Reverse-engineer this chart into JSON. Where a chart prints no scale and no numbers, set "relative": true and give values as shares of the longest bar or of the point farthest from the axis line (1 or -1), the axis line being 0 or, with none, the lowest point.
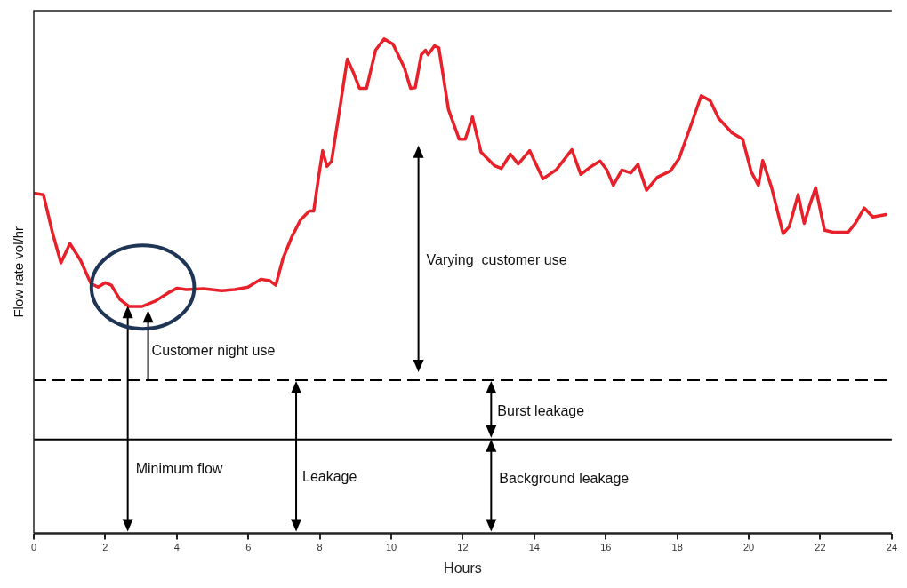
{
  "chart_data": {
    "type": "line",
    "xlabel": "Hours",
    "ylabel": "Flow rate vol/hr",
    "relative": true,
    "xlim": [
      0,
      24
    ],
    "xticks": [
      0,
      2,
      4,
      6,
      8,
      10,
      12,
      14,
      16,
      18,
      20,
      22,
      24
    ],
    "grid": false,
    "legend": false,
    "marker": "none",
    "line_style": "solid",
    "series": [
      {
        "color": "#e8202a",
        "x": [
          0,
          0.27,
          0.52,
          0.76,
          1.01,
          1.31,
          1.6,
          1.8,
          2.0,
          2.17,
          2.41,
          2.66,
          3.03,
          3.4,
          3.77,
          4.01,
          4.26,
          4.75,
          5.25,
          5.62,
          5.99,
          6.35,
          6.6,
          6.77,
          6.97,
          7.22,
          7.46,
          7.71,
          7.83,
          7.96,
          8.08,
          8.2,
          8.33,
          8.57,
          8.77,
          8.94,
          9.11,
          9.31,
          9.56,
          9.8,
          10.05,
          10.37,
          10.54,
          10.67,
          10.84,
          10.96,
          11.03,
          11.21,
          11.33,
          11.6,
          11.9,
          12.07,
          12.27,
          12.51,
          12.88,
          13.08,
          13.33,
          13.55,
          13.87,
          14.24,
          14.61,
          15.05,
          15.3,
          15.59,
          15.84,
          16.03,
          16.21,
          16.45,
          16.7,
          16.9,
          17.14,
          17.44,
          17.81,
          18.05,
          18.42,
          18.67,
          18.92,
          19.16,
          19.53,
          19.83,
          20.07,
          20.27,
          20.39,
          20.64,
          20.96,
          21.13,
          21.38,
          21.55,
          21.7,
          21.87,
          22.12,
          22.36,
          22.78,
          22.98,
          23.23,
          23.47,
          23.84
        ],
        "values": [
          0.688,
          0.685,
          0.609,
          0.547,
          0.586,
          0.552,
          0.505,
          0.498,
          0.507,
          0.502,
          0.473,
          0.459,
          0.459,
          0.47,
          0.487,
          0.496,
          0.493,
          0.495,
          0.491,
          0.493,
          0.498,
          0.514,
          0.511,
          0.502,
          0.556,
          0.6,
          0.634,
          0.652,
          0.652,
          0.717,
          0.774,
          0.742,
          0.753,
          0.864,
          0.959,
          0.932,
          0.9,
          0.9,
          0.977,
          1.0,
          0.989,
          0.941,
          0.9,
          0.901,
          0.968,
          0.977,
          0.968,
          0.986,
          0.982,
          0.857,
          0.797,
          0.797,
          0.842,
          0.771,
          0.744,
          0.738,
          0.767,
          0.747,
          0.774,
          0.717,
          0.735,
          0.776,
          0.726,
          0.742,
          0.753,
          0.735,
          0.704,
          0.735,
          0.729,
          0.746,
          0.694,
          0.72,
          0.733,
          0.758,
          0.833,
          0.885,
          0.875,
          0.839,
          0.81,
          0.797,
          0.731,
          0.704,
          0.754,
          0.699,
          0.606,
          0.62,
          0.685,
          0.627,
          0.663,
          0.699,
          0.613,
          0.609,
          0.609,
          0.627,
          0.658,
          0.64,
          0.645
        ]
      }
    ],
    "ref_lines": [
      {
        "axis": "y",
        "value": 0.31,
        "color": "#000000",
        "line_style": "dashed"
      },
      {
        "axis": "y",
        "value": 0.19,
        "color": "#000000",
        "line_style": "solid"
      }
    ],
    "annotations": [
      "Varying  customer use",
      "Customer night use",
      "Burst leakage",
      "Minimum flow",
      "Leakage",
      "Background leakage"
    ]
  }
}
